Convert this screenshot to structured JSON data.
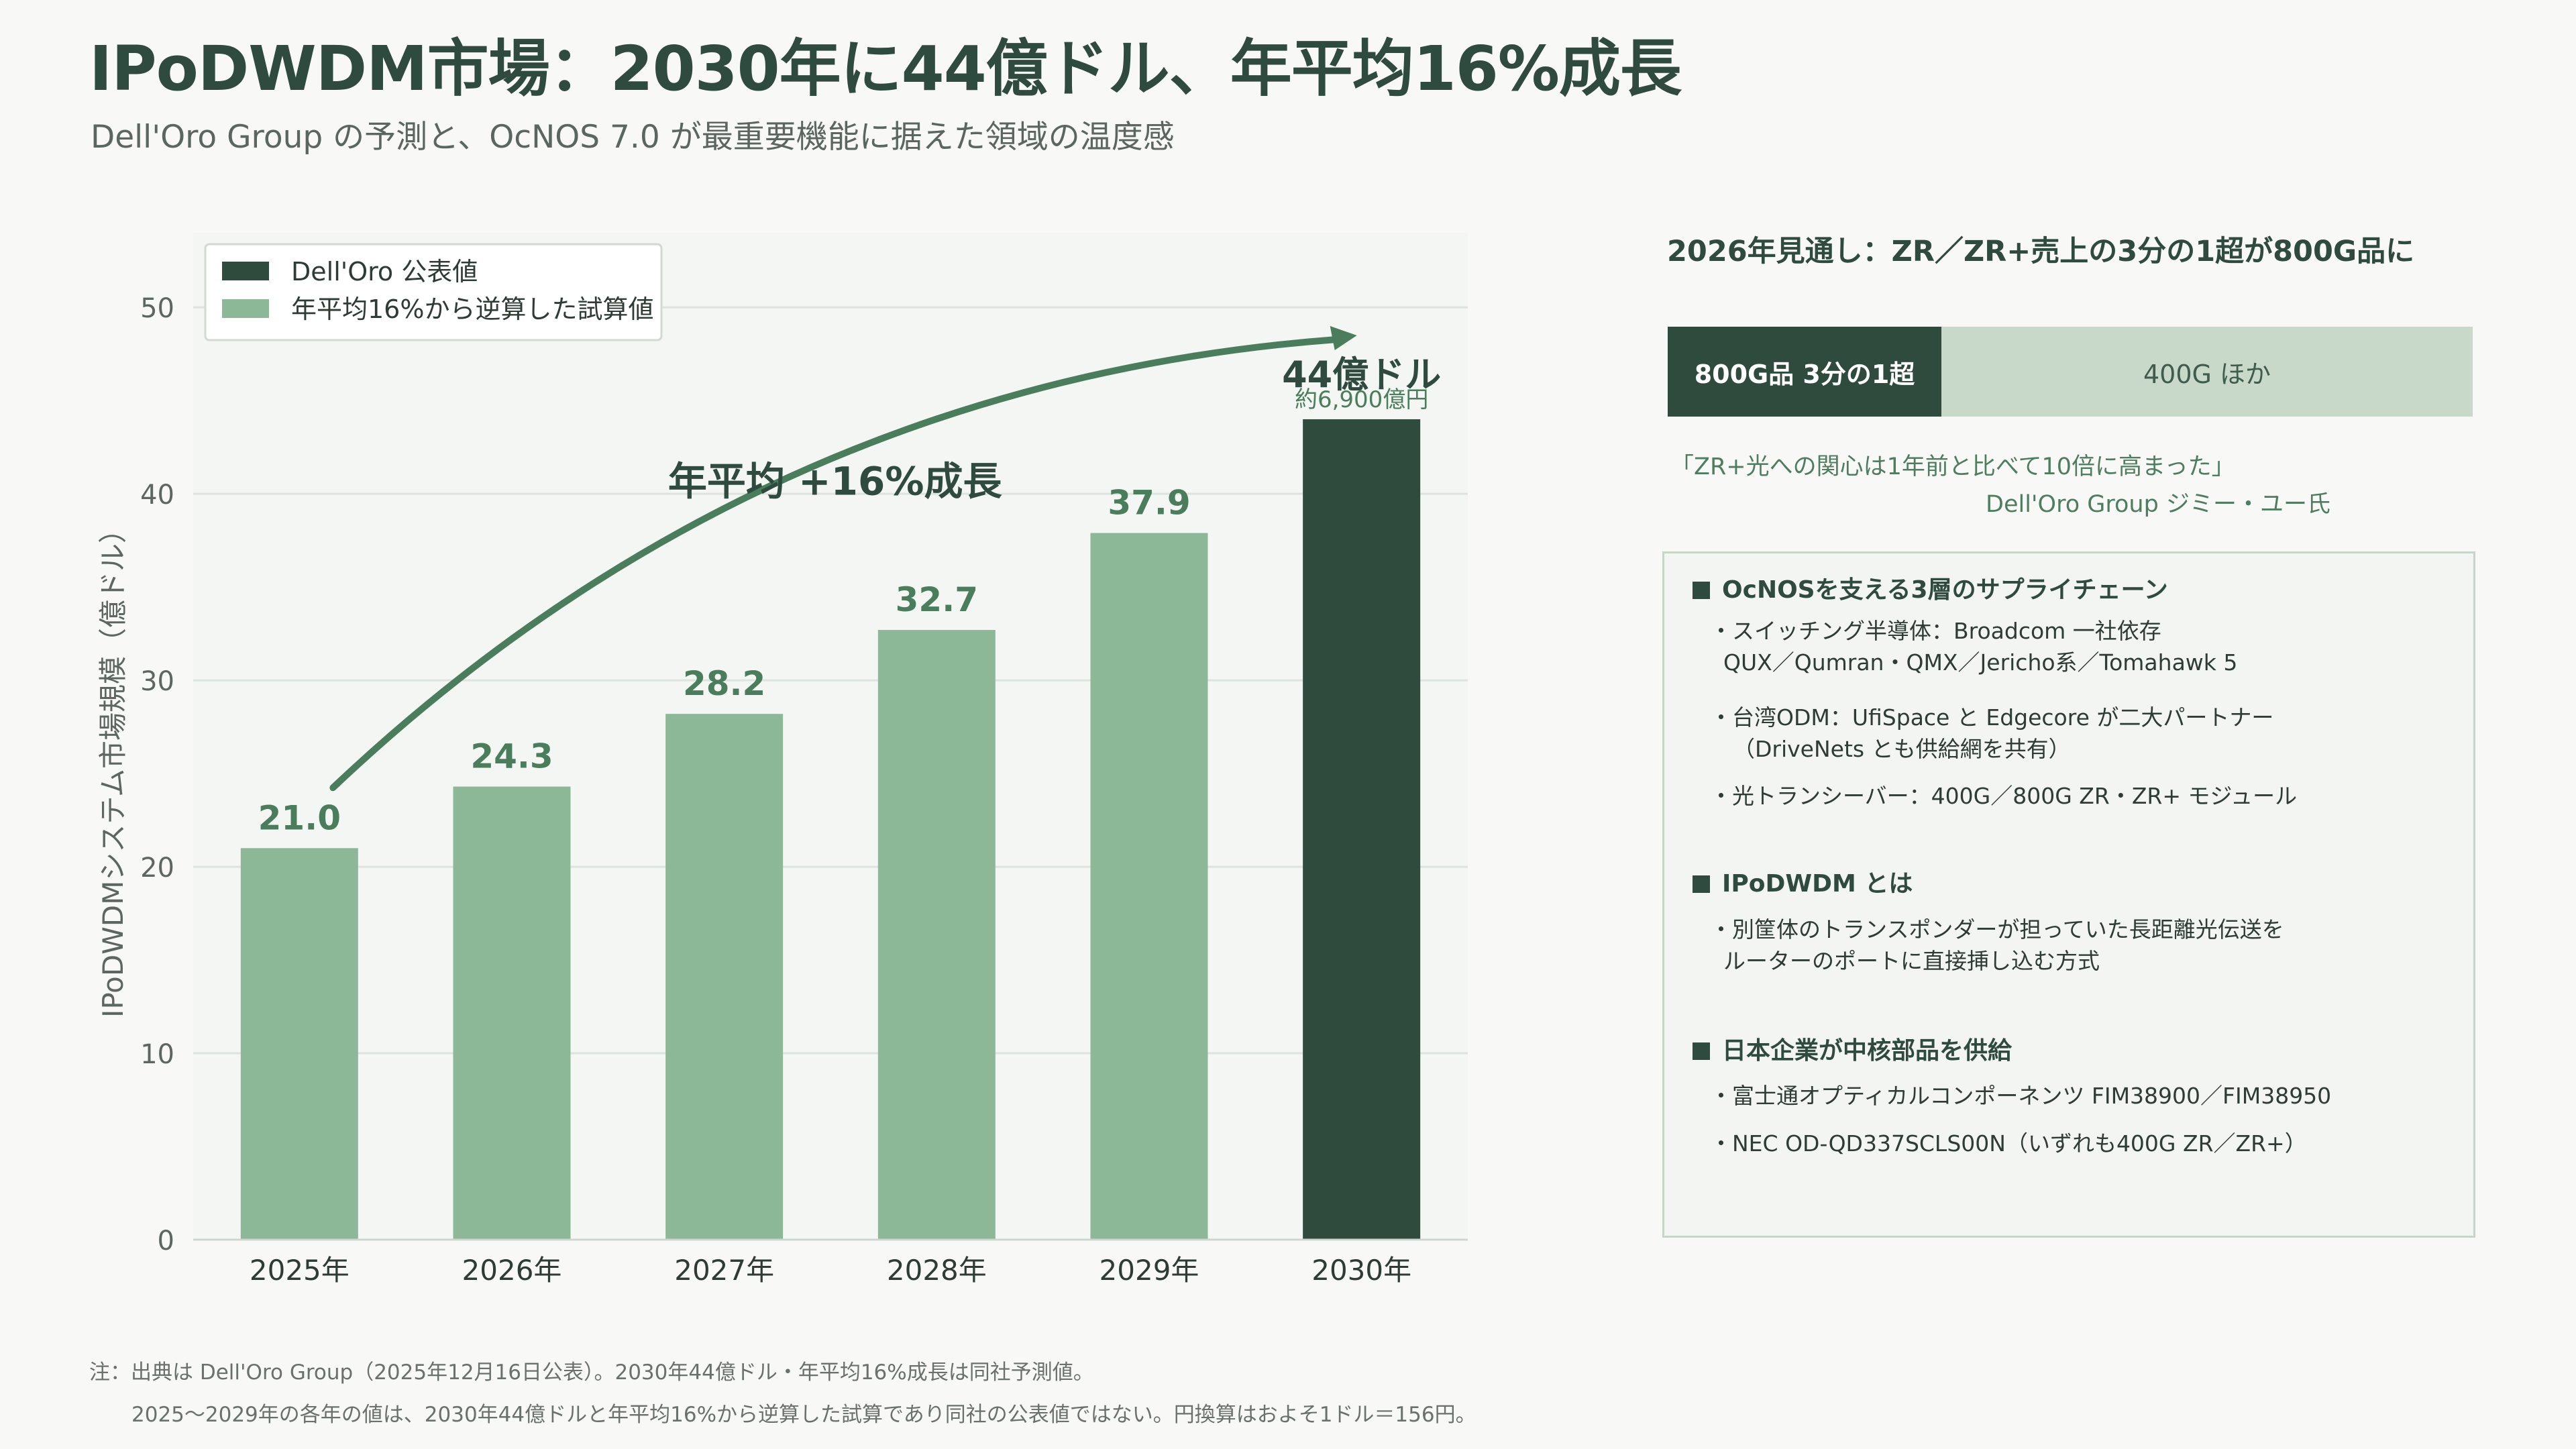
{
  "header": {
    "title": "IPoDWDM市場：2030年に44億ドル、年平均16%成長",
    "subtitle": "Dell'Oro Group の予測と、OcNOS 7.0 が最重要機能に据えた領域の温度感"
  },
  "chart_data": {
    "type": "bar",
    "categories": [
      "2025年",
      "2026年",
      "2027年",
      "2028年",
      "2029年",
      "2030年"
    ],
    "values": [
      21.0,
      24.3,
      28.2,
      32.7,
      37.9,
      44.0
    ],
    "value_labels": [
      "21.0",
      "24.3",
      "28.2",
      "32.7",
      "37.9",
      "44億ドル"
    ],
    "value_sublabels": [
      "",
      "",
      "",
      "",
      "",
      "約6,900億円"
    ],
    "series_type": [
      "estimate",
      "estimate",
      "estimate",
      "estimate",
      "estimate",
      "published"
    ],
    "ylabel": "IPoDWDMシステム市場規模（億ドル）",
    "xlabel": "",
    "ylim": [
      0,
      54
    ],
    "yticks": [
      0,
      10,
      20,
      30,
      40,
      50
    ],
    "grid": true,
    "legend_position": "top-left",
    "legend": [
      {
        "name": "Dell'Oro 公表値",
        "color": "#2e4b3e"
      },
      {
        "name": "年平均16%から逆算した試算値",
        "color": "#8db897"
      }
    ],
    "annotation": "年平均 +16%成長",
    "colors": {
      "published": "#2e4b3e",
      "estimate": "#8db897",
      "label": "#4a7d5c",
      "arrow": "#4a7d5c",
      "plot_bg": "#f3f6f2"
    }
  },
  "right_panel": {
    "heading": "2026年見通し：ZR／ZR+売上の3分の1超が800G品に",
    "bar": {
      "left_label": "800G品 3分の1超",
      "right_label": "400G ほか",
      "left_fraction": 0.34
    },
    "quote": "「ZR+光への関心は1年前と比べて10倍に高まった」",
    "quote_attribution": "Dell'Oro Group ジミー・ユー氏",
    "sections": [
      {
        "heading": "OcNOSを支える3層のサプライチェーン",
        "items": [
          "・スイッチング半導体：Broadcom 一社依存",
          "QUX／Qumran・QMX／Jericho系／Tomahawk 5",
          "・台湾ODM：UfiSpace と Edgecore が二大パートナー",
          "（DriveNets とも供給網を共有）",
          "・光トランシーバー：400G／800G ZR・ZR+ モジュール"
        ]
      },
      {
        "heading": "IPoDWDM とは",
        "items": [
          "・別筐体のトランスポンダーが担っていた長距離光伝送を",
          "ルーターのポートに直接挿し込む方式"
        ]
      },
      {
        "heading": "日本企業が中核部品を供給",
        "items": [
          "・富士通オプティカルコンポーネンツ FIM38900／FIM38950",
          "・NEC OD-QD337SCLS00N（いずれも400G ZR／ZR+）"
        ]
      }
    ]
  },
  "footnotes": {
    "line1": "注：出典は Dell'Oro Group（2025年12月16日公表）。2030年44億ドル・年平均16%成長は同社予測値。",
    "line2": "2025〜2029年の各年の値は、2030年44億ドルと年平均16%から逆算した試算であり同社の公表値ではない。円換算はおよそ1ドル＝156円。"
  }
}
